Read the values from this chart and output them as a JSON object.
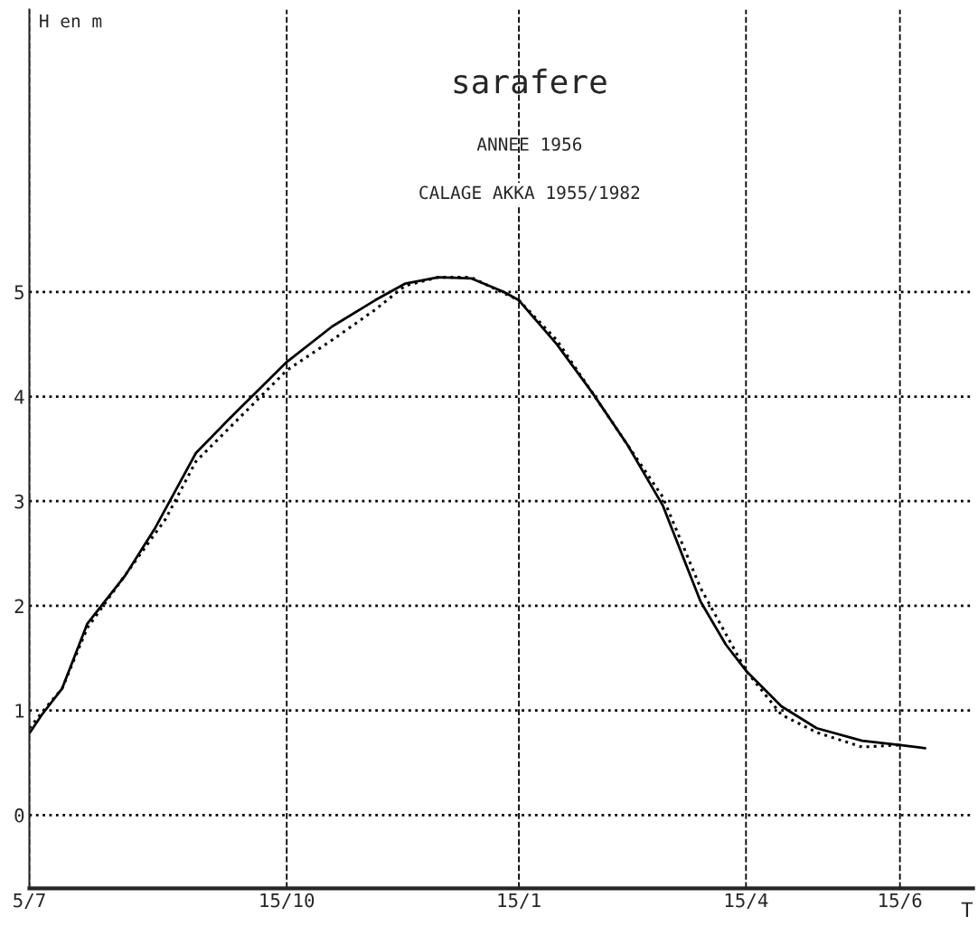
{
  "chart_data": {
    "type": "line",
    "title": "sarafere",
    "subtitle": "ANNEE 1956",
    "annotations": [
      "CALAGE AKKA 1955/1982"
    ],
    "xlabel": "T",
    "ylabel": "H en m",
    "xlim": [
      "1956-07-05",
      "1957-07-14"
    ],
    "ylim": [
      -0.7,
      7.7
    ],
    "xticks": [
      {
        "value": "1956-07-05",
        "label": "5/7"
      },
      {
        "value": "1956-10-15",
        "label": "15/10"
      },
      {
        "value": "1957-01-15",
        "label": "15/1"
      },
      {
        "value": "1957-04-15",
        "label": "15/4"
      },
      {
        "value": "1957-06-15",
        "label": "15/6"
      }
    ],
    "yticks": [
      0,
      1,
      2,
      3,
      4,
      5
    ],
    "grid": true,
    "series": [
      {
        "color": "#000000",
        "line_style": "solid",
        "x": [
          "1956-07-05",
          "1956-07-10",
          "1956-07-18",
          "1956-07-28",
          "1956-08-12",
          "1956-08-24",
          "1956-09-09",
          "1956-09-24",
          "1956-10-15",
          "1956-11-02",
          "1956-11-19",
          "1956-12-01",
          "1956-12-14",
          "1956-12-27",
          "1957-01-09",
          "1957-01-15",
          "1957-01-30",
          "1957-02-13",
          "1957-02-27",
          "1957-03-13",
          "1957-03-28",
          "1957-04-07",
          "1957-04-15",
          "1957-04-29",
          "1957-05-13",
          "1957-05-31",
          "1957-06-15",
          "1957-06-25"
        ],
        "values": [
          0.78,
          0.96,
          1.21,
          1.83,
          2.29,
          2.75,
          3.46,
          3.83,
          4.33,
          4.67,
          4.92,
          5.08,
          5.14,
          5.13,
          5.0,
          4.92,
          4.5,
          4.04,
          3.54,
          2.96,
          2.04,
          1.63,
          1.38,
          1.04,
          0.83,
          0.71,
          0.67,
          0.64
        ]
      },
      {
        "color": "#000000",
        "line_style": "dotted",
        "x": [
          "1956-07-05",
          "1956-07-12",
          "1956-07-18",
          "1956-07-28",
          "1956-08-28",
          "1956-09-09",
          "1956-10-15",
          "1956-11-02",
          "1956-11-19",
          "1956-12-01",
          "1956-12-14",
          "1956-12-27",
          "1957-01-15",
          "1957-01-30",
          "1957-02-27",
          "1957-03-13",
          "1957-03-28",
          "1957-04-15",
          "1957-04-29",
          "1957-05-13",
          "1957-05-31",
          "1957-06-15"
        ],
        "values": [
          0.83,
          1.04,
          1.21,
          1.79,
          2.83,
          3.38,
          4.25,
          4.54,
          4.83,
          5.06,
          5.14,
          5.14,
          4.92,
          4.54,
          3.54,
          3.04,
          2.17,
          1.38,
          0.96,
          0.79,
          0.65,
          0.67
        ]
      }
    ]
  }
}
